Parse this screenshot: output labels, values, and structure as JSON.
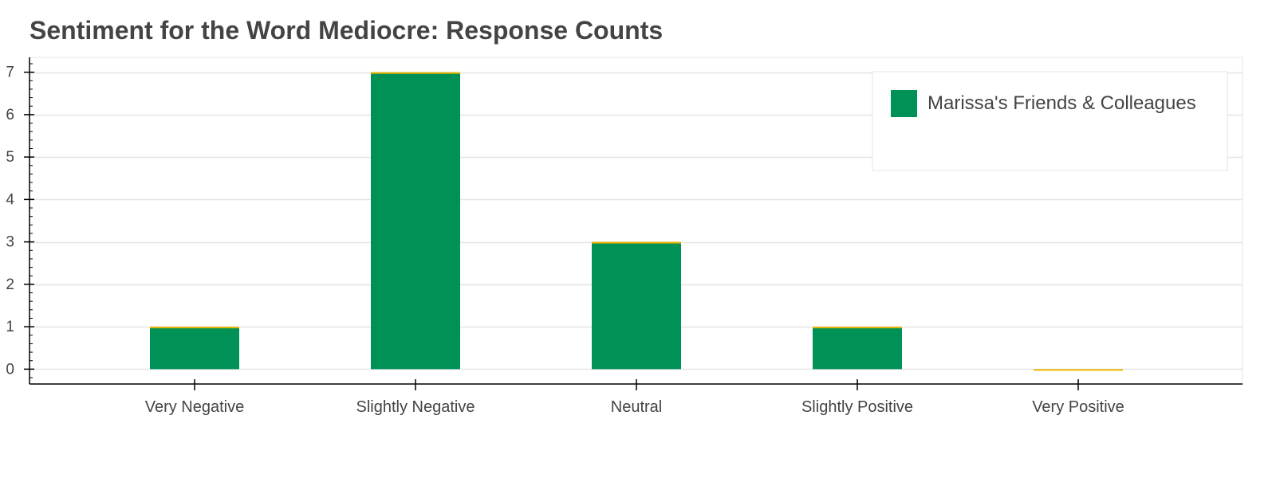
{
  "chart_data": {
    "type": "bar",
    "title": "Sentiment for the Word Mediocre: Response Counts",
    "xlabel": "",
    "ylabel": "",
    "categories": [
      "Very Negative",
      "Slightly Negative",
      "Neutral",
      "Slightly Positive",
      "Very Positive"
    ],
    "series": [
      {
        "name": "Marissa's Friends & Colleagues",
        "values": [
          1,
          7,
          3,
          1,
          0
        ],
        "color": "#009157",
        "outline_color": "#f0b400"
      }
    ],
    "ylim": [
      -0.35,
      7.35
    ],
    "yticks": [
      0,
      1,
      2,
      3,
      4,
      5,
      6,
      7
    ],
    "grid": true,
    "legend": "top-right",
    "colors": {
      "bar_fill": "#009157",
      "bar_outline": "#f0b400",
      "grid": "#e5e5e5",
      "axis": "#000000",
      "text": "#444444",
      "frame": "#e5e5e5"
    }
  }
}
